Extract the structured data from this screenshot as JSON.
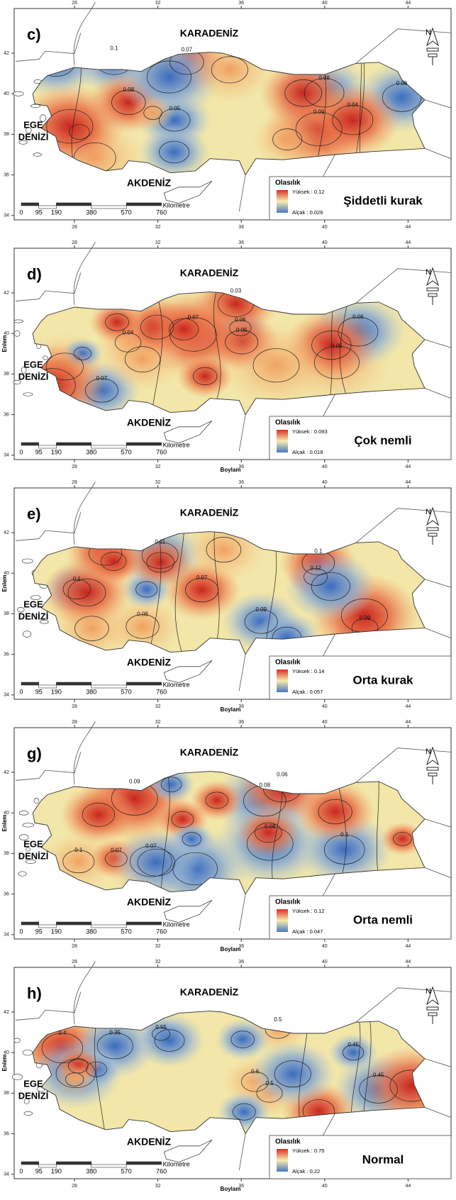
{
  "axis": {
    "xticks": [
      28,
      32,
      36,
      40,
      44
    ],
    "yticks": [
      34,
      36,
      38,
      40,
      42
    ]
  },
  "scale": {
    "labels": [
      0,
      95,
      190,
      380,
      570,
      760
    ],
    "unit": "Kilometre"
  },
  "north": "N",
  "panels": [
    {
      "label": "c)",
      "title": "Şiddetli kurak",
      "seas": {
        "north": "KARADENİZ",
        "west": [
          "EGE",
          "DENİZİ"
        ],
        "south": "AKDENİZ"
      },
      "legend": {
        "title": "Olasılık",
        "high": "Yüksek : 0.12",
        "low": "Alçak : 0.026"
      },
      "contours": [
        "0.07",
        "0.08",
        "0.06",
        "0.1",
        "0.09",
        "0.05",
        "0.04",
        "0.08"
      ]
    },
    {
      "label": "d)",
      "title": "Çok nemli",
      "seas": {
        "north": "KARADENİZ",
        "west": [
          "EGE",
          "DENİZİ"
        ],
        "south": "AKDENİZ"
      },
      "legend": {
        "title": "Olasılık",
        "high": "Yüksek : 0.093",
        "low": "Alçak : 0.018"
      },
      "y_label": "Enlem",
      "x_label": "Boylam",
      "contours": [
        "0.06",
        "0.05",
        "0.07",
        "0.04",
        "0.03",
        "0.06",
        "0.05",
        "0.07"
      ]
    },
    {
      "label": "e)",
      "title": "Orta kurak",
      "seas": {
        "north": "KARADENİZ",
        "west": [
          "EGE",
          "DENİZİ"
        ],
        "south": "AKDENİZ"
      },
      "legend": {
        "title": "Olasılık",
        "high": "Yüksek : 0.14",
        "low": "Alçak : 0.057"
      },
      "y_label": "Enlem",
      "x_label": "Boylam",
      "contours": [
        "0.1",
        "0.09",
        "0.08",
        "0.11",
        "0.07",
        "0.12",
        "0.09",
        "0.1"
      ]
    },
    {
      "label": "g)",
      "title": "Orta nemli",
      "seas": {
        "north": "KARADENİZ",
        "west": [
          "EGE",
          "DENİZİ"
        ],
        "south": "AKDENİZ"
      },
      "legend": {
        "title": "Olasılık",
        "high": "Yüksek : 0.12",
        "low": "Alçak : 0.047"
      },
      "y_label": "Enlem",
      "x_label": "Boylam",
      "contours": [
        "0.08",
        "0.1",
        "0.07",
        "0.09",
        "0.06",
        "0.08",
        "0.1",
        "0.07"
      ]
    },
    {
      "label": "h)",
      "title": "Normal",
      "seas": {
        "north": "KARADENİZ",
        "west": [
          "EGE",
          "DENİZİ"
        ],
        "south": "AKDENİZ"
      },
      "legend": {
        "title": "Olasılık",
        "high": "Yüksek : 0.75",
        "low": "Alçak : 0.22"
      },
      "y_label": "Enlem",
      "x_label": "Boylam",
      "contours": [
        "0.5",
        "0.45",
        "0.55",
        "0.4",
        "0.6",
        "0.35",
        "0.5",
        "0.45"
      ]
    }
  ]
}
